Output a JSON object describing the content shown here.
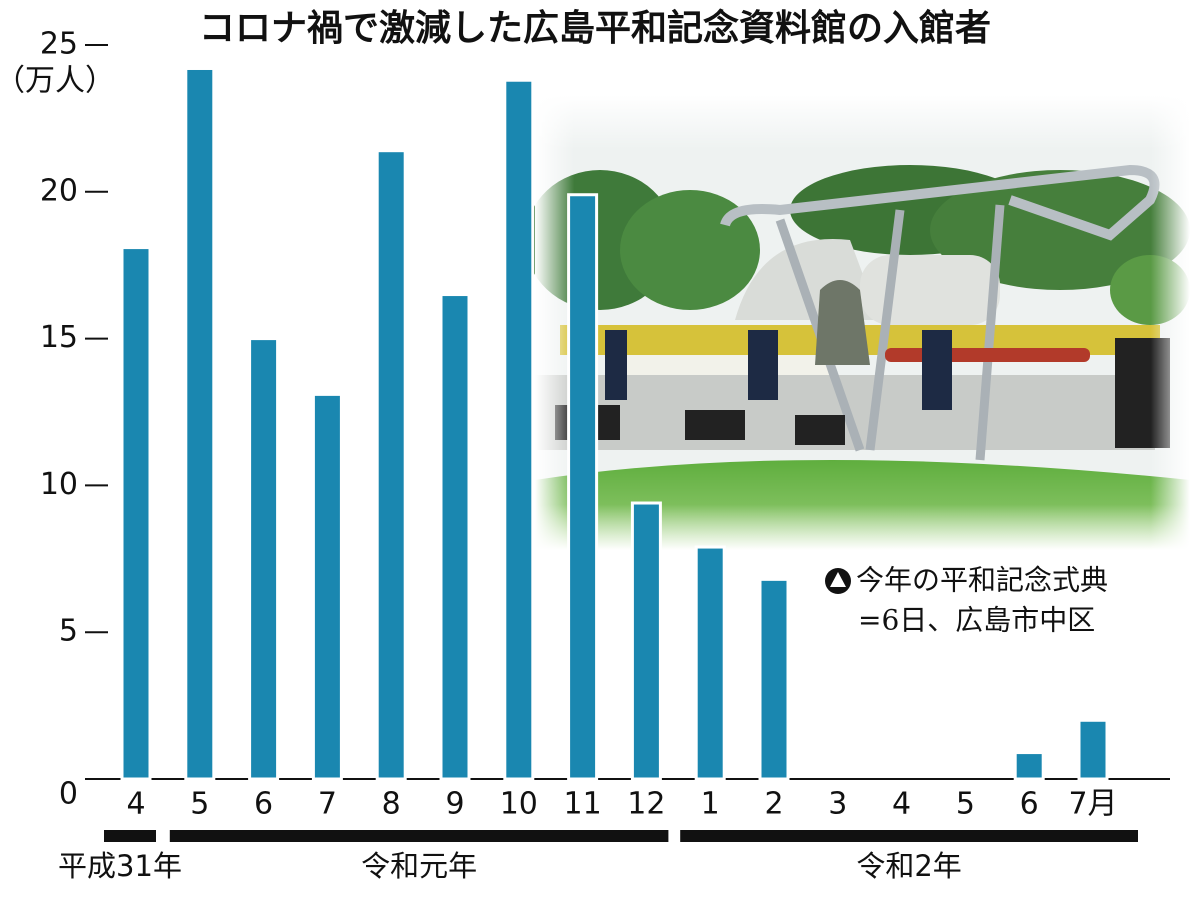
{
  "chart_data": {
    "type": "bar",
    "title": "コロナ禍で激減した広島平和記念資料館の入館者",
    "y_label": "（万人）",
    "categories": [
      "4",
      "5",
      "6",
      "7",
      "8",
      "9",
      "10",
      "11",
      "12",
      "1",
      "2",
      "3",
      "4",
      "5",
      "6",
      "7月"
    ],
    "values": [
      18.1,
      24.2,
      15.0,
      13.1,
      21.4,
      16.5,
      23.8,
      19.9,
      9.4,
      7.9,
      6.8,
      0,
      0,
      0,
      0.9,
      2.0
    ],
    "color": "#1a87b0",
    "ylim": [
      0,
      25
    ],
    "yticks": [
      0,
      5,
      10,
      15,
      20,
      25
    ],
    "eras": [
      "平成31年",
      "令和元年",
      "令和2年"
    ],
    "annotations": [
      "今年の平和記念式典",
      "=6日、広島市中区"
    ]
  }
}
